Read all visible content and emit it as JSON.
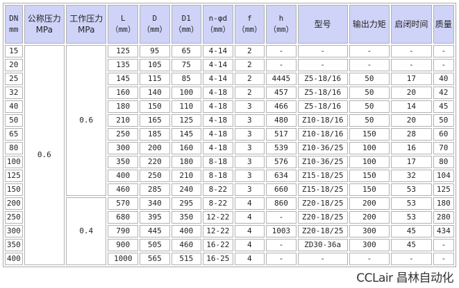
{
  "table": {
    "headers": [
      {
        "label": "DN",
        "unit": "mm"
      },
      {
        "label": "公称压力",
        "unit": "MPa"
      },
      {
        "label": "工作压力",
        "unit": "MPa"
      },
      {
        "label": "L",
        "unit": "（mm）"
      },
      {
        "label": "D",
        "unit": "（mm）"
      },
      {
        "label": "D1",
        "unit": "（mm）"
      },
      {
        "label": "n-φd",
        "unit": "（mm）"
      },
      {
        "label": "f",
        "unit": "（mm）"
      },
      {
        "label": "h",
        "unit": "（mm）"
      },
      {
        "label": "型号",
        "unit": ""
      },
      {
        "label": "输出力矩",
        "unit": ""
      },
      {
        "label": "启闭时间",
        "unit": ""
      },
      {
        "label": "质量",
        "unit": ""
      }
    ],
    "nominal_pressure": "0.6",
    "working_pressure_groups": [
      {
        "value": "0.6",
        "rows": 11
      },
      {
        "value": "0.4",
        "rows": 5
      }
    ],
    "rows": [
      [
        "15",
        "125",
        "95",
        "65",
        "4-14",
        "2",
        "-",
        "-",
        "-",
        "-",
        "-"
      ],
      [
        "20",
        "135",
        "105",
        "75",
        "4-14",
        "2",
        "-",
        "-",
        "-",
        "-",
        "-"
      ],
      [
        "25",
        "145",
        "115",
        "85",
        "4-14",
        "2",
        "4445",
        "Z5-18/16",
        "50",
        "17",
        "40"
      ],
      [
        "32",
        "160",
        "140",
        "100",
        "4-18",
        "2",
        "457",
        "Z5-18/16",
        "50",
        "20",
        "42"
      ],
      [
        "40",
        "180",
        "150",
        "110",
        "4-18",
        "3",
        "466",
        "Z5-18/16",
        "50",
        "14",
        "45"
      ],
      [
        "50",
        "210",
        "165",
        "125",
        "4-18",
        "3",
        "480",
        "Z10-18/16",
        "50",
        "20",
        "50"
      ],
      [
        "65",
        "250",
        "185",
        "145",
        "4-18",
        "3",
        "517",
        "Z10-18/16",
        "150",
        "28",
        "60"
      ],
      [
        "80",
        "300",
        "200",
        "160",
        "4-18",
        "3",
        "539",
        "Z10-36/25",
        "100",
        "16",
        "70"
      ],
      [
        "100",
        "350",
        "220",
        "180",
        "8-18",
        "3",
        "576",
        "Z10-36/25",
        "100",
        "17",
        "80"
      ],
      [
        "125",
        "400",
        "250",
        "210",
        "8-18",
        "3",
        "634",
        "Z15-18/25",
        "150",
        "32",
        "104"
      ],
      [
        "150",
        "460",
        "285",
        "240",
        "8-22",
        "3",
        "660",
        "Z15-18/25",
        "150",
        "53",
        "125"
      ],
      [
        "200",
        "570",
        "340",
        "295",
        "8-22",
        "4",
        "860",
        "Z20-18/25",
        "200",
        "53",
        "180"
      ],
      [
        "250",
        "680",
        "395",
        "350",
        "12-22",
        "4",
        "-",
        "Z20-18/25",
        "200",
        "53",
        "280"
      ],
      [
        "300",
        "790",
        "445",
        "400",
        "12-22",
        "4",
        "1003",
        "Z20-18/25",
        "300",
        "45",
        "434"
      ],
      [
        "350",
        "900",
        "505",
        "460",
        "16-22",
        "4",
        "-",
        "ZD30-36a",
        "300",
        "45",
        "-"
      ],
      [
        "400",
        "1000",
        "565",
        "515",
        "16-25",
        "4",
        "-",
        "-",
        "-",
        "-",
        "-"
      ]
    ]
  },
  "watermark": "CCLair 昌林自动化"
}
